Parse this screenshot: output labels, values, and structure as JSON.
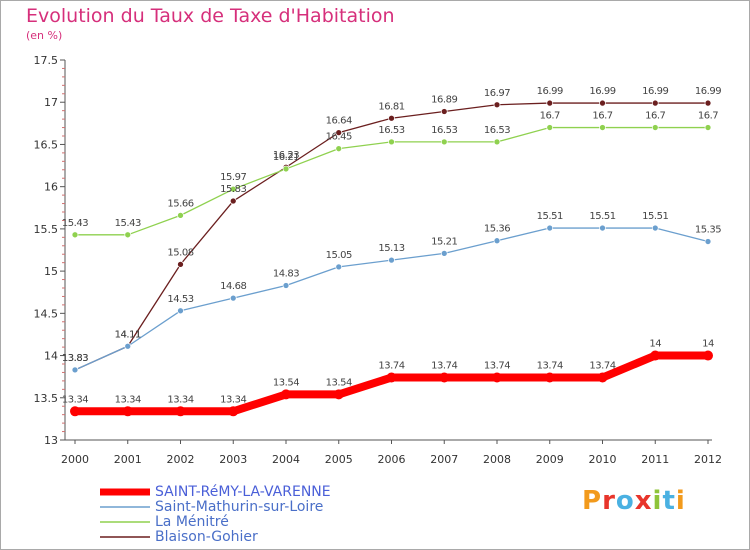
{
  "chart_data": {
    "type": "line",
    "title": "Evolution du Taux de Taxe d'Habitation",
    "subtitle": "(en %)",
    "xlabel": "",
    "ylabel": "",
    "categories": [
      "2000",
      "2001",
      "2002",
      "2003",
      "2004",
      "2005",
      "2006",
      "2007",
      "2008",
      "2009",
      "2010",
      "2011",
      "2012"
    ],
    "ylim": [
      13,
      17.5
    ],
    "yticks": [
      "13",
      "13.5",
      "14",
      "14.5",
      "15",
      "15.5",
      "16",
      "16.5",
      "17",
      "17.5"
    ],
    "grid": false,
    "legend_position": "bottom-left",
    "series": [
      {
        "name": "SAINT-RéMY-LA-VARENNE",
        "color": "#ff0000",
        "values": [
          13.34,
          13.34,
          13.34,
          13.34,
          13.54,
          13.54,
          13.74,
          13.74,
          13.74,
          13.74,
          13.74,
          14,
          14
        ],
        "labels": [
          "13.34",
          "13.34",
          "13.34",
          "13.34",
          "13.54",
          "13.54",
          "13.74",
          "13.74",
          "13.74",
          "13.74",
          "13.74",
          "14",
          "14"
        ]
      },
      {
        "name": "Saint-Mathurin-sur-Loire",
        "color": "#6b9fce",
        "values": [
          13.83,
          14.11,
          14.53,
          14.68,
          14.83,
          15.05,
          15.13,
          15.21,
          15.36,
          15.51,
          15.51,
          15.51,
          15.35
        ],
        "labels": [
          "13.83",
          "14.11",
          "14.53",
          "14.68",
          "14.83",
          "15.05",
          "15.13",
          "15.21",
          "15.36",
          "15.51",
          "15.51",
          "15.51",
          "15.35"
        ]
      },
      {
        "name": "La Ménitré",
        "color": "#8fd14f",
        "values": [
          15.43,
          15.43,
          15.66,
          15.97,
          16.21,
          16.45,
          16.53,
          16.53,
          16.53,
          16.7,
          16.7,
          16.7,
          16.7
        ],
        "labels": [
          "15.43",
          "15.43",
          "15.66",
          "15.97",
          "16.21",
          "16.45",
          "16.53",
          "16.53",
          "16.53",
          "16.7",
          "16.7",
          "16.7",
          "16.7"
        ]
      },
      {
        "name": "Blaison-Gohier",
        "color": "#6b1f1f",
        "values": [
          13.83,
          14.11,
          15.08,
          15.83,
          16.23,
          16.64,
          16.81,
          16.89,
          16.97,
          16.99,
          16.99,
          16.99,
          16.99
        ],
        "labels": [
          "13.83",
          "14.11",
          "15.08",
          "15.83",
          "16.23",
          "16.64",
          "16.81",
          "16.89",
          "16.97",
          "16.99",
          "16.99",
          "16.99",
          "16.99"
        ]
      }
    ]
  },
  "logo": {
    "text": "Proxiti"
  }
}
